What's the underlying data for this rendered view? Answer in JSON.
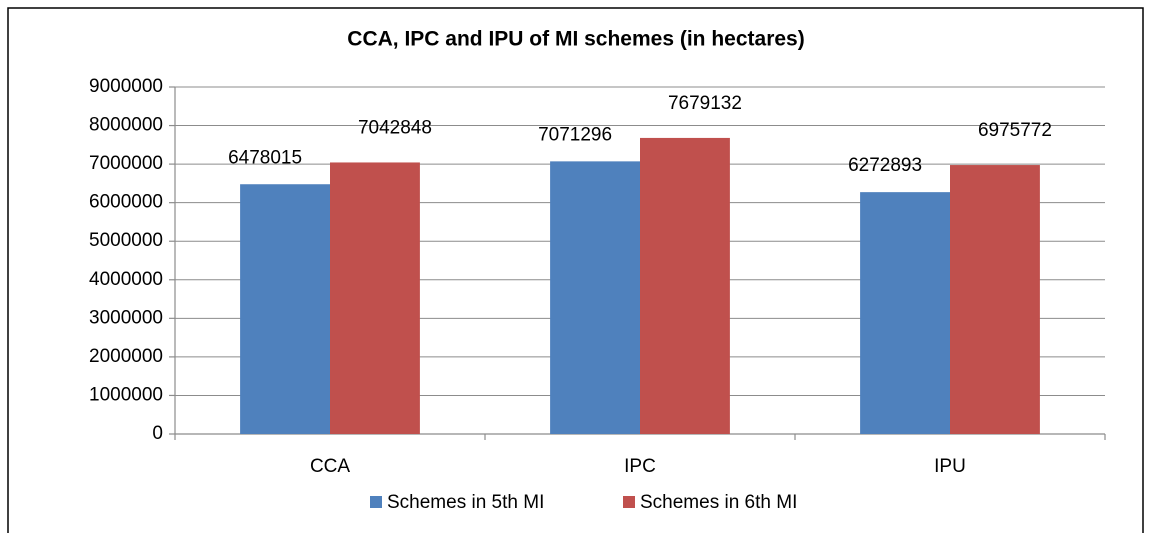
{
  "chart_data": {
    "type": "bar",
    "title": "CCA, IPC and IPU of MI schemes (in hectares)",
    "categories": [
      "CCA",
      "IPC",
      "IPU"
    ],
    "series": [
      {
        "name": "Schemes in 5th MI",
        "color": "#4f81bd",
        "values": [
          6478015,
          7071296,
          6272893
        ]
      },
      {
        "name": "Schemes in 6th MI",
        "color": "#c0504d",
        "values": [
          7042848,
          7679132,
          6975772
        ]
      }
    ],
    "ylim": [
      0,
      9000000
    ],
    "yticks": [
      0,
      1000000,
      2000000,
      3000000,
      4000000,
      5000000,
      6000000,
      7000000,
      8000000,
      9000000
    ],
    "grid": true,
    "legend": "bottom"
  }
}
